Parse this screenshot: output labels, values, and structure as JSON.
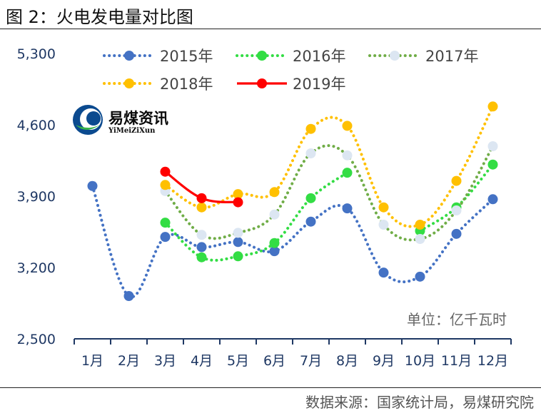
{
  "figure": {
    "title": "图 2：火电发电量对比图",
    "source": "数据来源：国家统计局，易煤研究院"
  },
  "logo": {
    "name_cn": "易煤资讯",
    "name_en": "YiMeiZiXun"
  },
  "colors": {
    "s2015": "#4472c4",
    "s2016": "#33dd44",
    "s2017": "#70ad47",
    "s2018": "#ffc000",
    "s2019": "#ff0000",
    "s2017_marker": "#dce6f2",
    "axis": "#1f3864"
  },
  "chart_data": {
    "type": "line",
    "categories": [
      "1月",
      "2月",
      "3月",
      "4月",
      "5月",
      "6月",
      "7月",
      "8月",
      "9月",
      "10月",
      "11月",
      "12月"
    ],
    "ylim": [
      2500,
      5300
    ],
    "yticks": [
      "2,500",
      "3,200",
      "3,900",
      "4,600",
      "5,300"
    ],
    "unit_label": "单位：亿千瓦时",
    "series": [
      {
        "name": "2015年",
        "values": [
          4000,
          2920,
          3500,
          3400,
          3450,
          3360,
          3650,
          3780,
          3150,
          3110,
          3530,
          3870
        ],
        "style": "dotted"
      },
      {
        "name": "2016年",
        "values": [
          null,
          null,
          3640,
          3300,
          3310,
          3440,
          3880,
          4130,
          null,
          3560,
          3790,
          4210
        ],
        "style": "dotted"
      },
      {
        "name": "2017年",
        "values": [
          null,
          null,
          3950,
          3520,
          3540,
          3720,
          4320,
          4300,
          3620,
          3480,
          3760,
          4390
        ],
        "style": "dotted"
      },
      {
        "name": "2018年",
        "values": [
          null,
          null,
          4010,
          3790,
          3920,
          3940,
          4560,
          4590,
          3790,
          3620,
          4050,
          4780
        ],
        "style": "dotted"
      },
      {
        "name": "2019年",
        "values": [
          null,
          null,
          4140,
          3880,
          3840,
          null,
          null,
          null,
          null,
          null,
          null,
          null
        ],
        "style": "solid"
      }
    ]
  }
}
